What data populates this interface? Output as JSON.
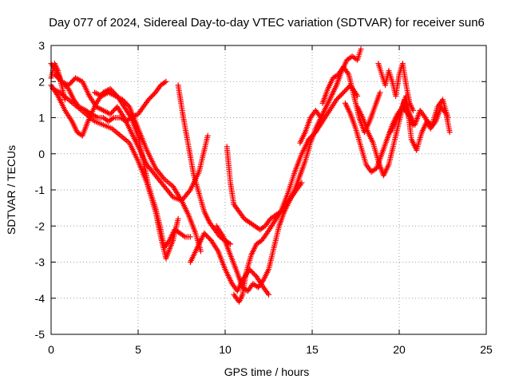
{
  "chart_data": {
    "type": "scatter",
    "title": "Day 077 of 2024, Sidereal Day-to-day VTEC variation (SDTVAR) for receiver sun6",
    "xlabel": "GPS time / hours",
    "ylabel": "SDTVAR / TECUs",
    "xlim": [
      0,
      25
    ],
    "ylim": [
      -5,
      3
    ],
    "xticks": [
      0,
      5,
      10,
      15,
      20,
      25
    ],
    "yticks": [
      -5,
      -4,
      -3,
      -2,
      -1,
      0,
      1,
      2,
      3
    ],
    "grid": true,
    "marker": "+",
    "color": "#ff0000",
    "series": [
      {
        "x": [
          0.0,
          0.3,
          0.6,
          1.0,
          1.3,
          1.6,
          2.0,
          2.3,
          2.7,
          3.0,
          3.3,
          3.6,
          4.0,
          4.3,
          4.6,
          5.0,
          5.3,
          5.6,
          6.0,
          6.3,
          6.6
        ],
        "y": [
          2.5,
          2.3,
          2.0,
          1.8,
          1.5,
          1.3,
          1.2,
          1.1,
          1.0,
          1.0,
          0.9,
          1.0,
          1.0,
          0.9,
          1.0,
          1.1,
          1.3,
          1.5,
          1.7,
          1.9,
          2.0
        ]
      },
      {
        "x": [
          0.0,
          0.4,
          0.8,
          1.2,
          1.5,
          1.8,
          2.2,
          2.6,
          3.0,
          3.4,
          3.8,
          4.2,
          4.6,
          5.0,
          5.3,
          5.6,
          6.0,
          6.3,
          6.5,
          6.8,
          7.1,
          7.4,
          7.7,
          8.0
        ],
        "y": [
          1.9,
          1.6,
          1.2,
          0.9,
          0.6,
          0.5,
          1.0,
          1.4,
          1.7,
          1.8,
          1.6,
          1.3,
          1.0,
          0.5,
          -0.2,
          -0.9,
          -1.5,
          -2.1,
          -2.6,
          -2.4,
          -2.1,
          -2.2,
          -2.3,
          -2.3
        ]
      },
      {
        "x": [
          0.1,
          0.5,
          1.0,
          1.5,
          2.0,
          2.5,
          3.0,
          3.5,
          4.0,
          4.5,
          5.0,
          5.5,
          6.0,
          6.3,
          6.6,
          7.0,
          7.3
        ],
        "y": [
          1.8,
          1.7,
          1.5,
          1.3,
          1.1,
          0.9,
          0.8,
          0.7,
          0.5,
          0.3,
          -0.2,
          -0.8,
          -1.6,
          -2.3,
          -2.9,
          -2.4,
          -1.8
        ]
      },
      {
        "x": [
          0.2,
          0.6,
          1.0,
          1.4,
          1.8,
          2.2,
          2.6,
          3.0,
          3.4,
          3.8,
          4.2,
          4.6,
          5.0,
          5.5,
          6.0,
          6.5,
          7.0,
          7.5,
          8.0,
          8.5,
          9.0
        ],
        "y": [
          2.2,
          2.0,
          1.9,
          2.1,
          2.0,
          1.6,
          1.3,
          1.2,
          1.1,
          1.3,
          1.0,
          0.6,
          0.2,
          -0.3,
          -0.6,
          -0.9,
          -1.2,
          -1.3,
          -1.0,
          -0.5,
          0.5
        ]
      },
      {
        "x": [
          2.5,
          2.9,
          3.3,
          3.7,
          4.1,
          4.5,
          5.0,
          5.5,
          6.0,
          6.5,
          7.0,
          7.5,
          7.9,
          8.3,
          8.6
        ],
        "y": [
          1.7,
          1.6,
          1.7,
          1.6,
          1.5,
          1.3,
          0.7,
          0.1,
          -0.4,
          -0.7,
          -0.9,
          -1.3,
          -1.7,
          -2.2,
          -2.7
        ]
      },
      {
        "x": [
          7.3,
          7.6,
          7.9,
          8.2,
          8.5,
          8.8,
          9.1,
          9.4,
          9.7,
          10.0,
          10.3
        ],
        "y": [
          1.9,
          1.0,
          0.2,
          -0.6,
          -1.1,
          -1.6,
          -1.9,
          -2.1,
          -2.3,
          -2.4,
          -2.5
        ]
      },
      {
        "x": [
          8.0,
          8.4,
          8.8,
          9.2,
          9.6,
          10.0,
          10.4,
          10.7,
          11.0,
          11.4,
          11.8,
          12.2,
          12.5
        ],
        "y": [
          -3.0,
          -2.6,
          -2.2,
          -2.4,
          -2.7,
          -3.2,
          -3.6,
          -3.8,
          -3.5,
          -3.2,
          -3.4,
          -3.7,
          -3.9
        ]
      },
      {
        "x": [
          10.1,
          10.3,
          10.5,
          10.8,
          11.1,
          11.4,
          11.7,
          12.0,
          12.3,
          12.6,
          12.9,
          13.2,
          13.5,
          13.8,
          14.1,
          14.4
        ],
        "y": [
          0.2,
          -0.8,
          -1.4,
          -1.6,
          -1.8,
          -1.9,
          -2.0,
          -2.1,
          -2.0,
          -1.8,
          -1.7,
          -1.6,
          -1.4,
          -1.2,
          -1.0,
          -0.8
        ]
      },
      {
        "x": [
          9.5,
          9.9,
          10.3,
          10.7,
          11.0,
          11.3,
          11.6,
          11.9,
          12.2,
          12.5,
          12.8,
          13.1,
          13.4,
          13.7,
          14.0,
          14.3,
          14.6,
          14.9,
          15.2,
          15.5
        ],
        "y": [
          -2.0,
          -2.3,
          -2.8,
          -3.3,
          -3.7,
          -3.8,
          -3.6,
          -3.7,
          -3.5,
          -3.2,
          -2.6,
          -2.0,
          -1.6,
          -1.3,
          -1.0,
          -0.6,
          -0.2,
          0.3,
          0.7,
          1.0
        ]
      },
      {
        "x": [
          10.5,
          10.8,
          11.0,
          11.2,
          11.5,
          11.8,
          12.1,
          12.4,
          12.8,
          13.2,
          13.6,
          14.0,
          14.4,
          14.8,
          15.2,
          15.6,
          16.0,
          16.4,
          16.8,
          17.2,
          17.6
        ],
        "y": [
          -3.9,
          -4.1,
          -3.9,
          -3.3,
          -2.8,
          -2.5,
          -2.4,
          -2.2,
          -1.9,
          -1.6,
          -1.1,
          -0.5,
          0.0,
          0.4,
          0.6,
          0.9,
          1.2,
          1.5,
          1.7,
          1.9,
          1.6
        ]
      },
      {
        "x": [
          14.3,
          14.6,
          14.9,
          15.2,
          15.5,
          15.8,
          16.1,
          16.4,
          16.7,
          17.0,
          17.3,
          17.6,
          17.8
        ],
        "y": [
          0.3,
          0.6,
          1.0,
          1.2,
          1.0,
          1.3,
          1.6,
          1.9,
          2.3,
          2.6,
          2.7,
          2.6,
          2.9
        ]
      },
      {
        "x": [
          15.6,
          15.9,
          16.2,
          16.5,
          16.8,
          17.1,
          17.4,
          17.7,
          18.0,
          18.3,
          18.6,
          18.9
        ],
        "y": [
          1.4,
          1.8,
          2.1,
          2.2,
          2.4,
          2.2,
          1.6,
          1.0,
          0.6,
          0.9,
          1.3,
          1.7
        ]
      },
      {
        "x": [
          16.9,
          17.2,
          17.5,
          17.8,
          18.1,
          18.4,
          18.7,
          19.0,
          19.3,
          19.6,
          19.9,
          20.2,
          20.5,
          20.8
        ],
        "y": [
          1.4,
          1.1,
          0.7,
          0.2,
          -0.3,
          -0.5,
          -0.4,
          0.0,
          0.4,
          0.8,
          1.1,
          1.3,
          1.1,
          0.8
        ]
      },
      {
        "x": [
          17.6,
          17.9,
          18.2,
          18.5,
          18.8,
          19.1,
          19.4,
          19.7,
          20.0,
          20.3,
          20.6,
          20.9,
          21.2,
          21.5,
          21.8,
          22.1,
          22.4,
          22.7,
          22.9
        ],
        "y": [
          1.3,
          1.0,
          0.6,
          0.3,
          -0.2,
          -0.6,
          -0.3,
          0.3,
          0.9,
          1.5,
          1.1,
          0.8,
          1.2,
          1.0,
          0.7,
          0.9,
          1.3,
          1.1,
          0.6
        ]
      },
      {
        "x": [
          18.8,
          19.0,
          19.2,
          19.4,
          19.6,
          19.8,
          20.0,
          20.2,
          20.4,
          20.6,
          20.8
        ],
        "y": [
          2.5,
          2.2,
          1.9,
          2.3,
          2.0,
          1.6,
          2.2,
          2.5,
          1.9,
          1.4,
          1.2
        ]
      },
      {
        "x": [
          19.5,
          19.8,
          20.1,
          20.4,
          20.7,
          21.0,
          21.3,
          21.6,
          21.9,
          22.2,
          22.5,
          22.8
        ],
        "y": [
          0.6,
          0.9,
          1.2,
          1.6,
          0.4,
          0.1,
          0.6,
          0.9,
          0.8,
          1.3,
          1.5,
          1.0
        ]
      },
      {
        "x": [
          0.0,
          0.2,
          0.4,
          0.6,
          0.8
        ],
        "y": [
          2.1,
          2.5,
          2.3,
          1.9,
          1.5
        ]
      }
    ]
  }
}
